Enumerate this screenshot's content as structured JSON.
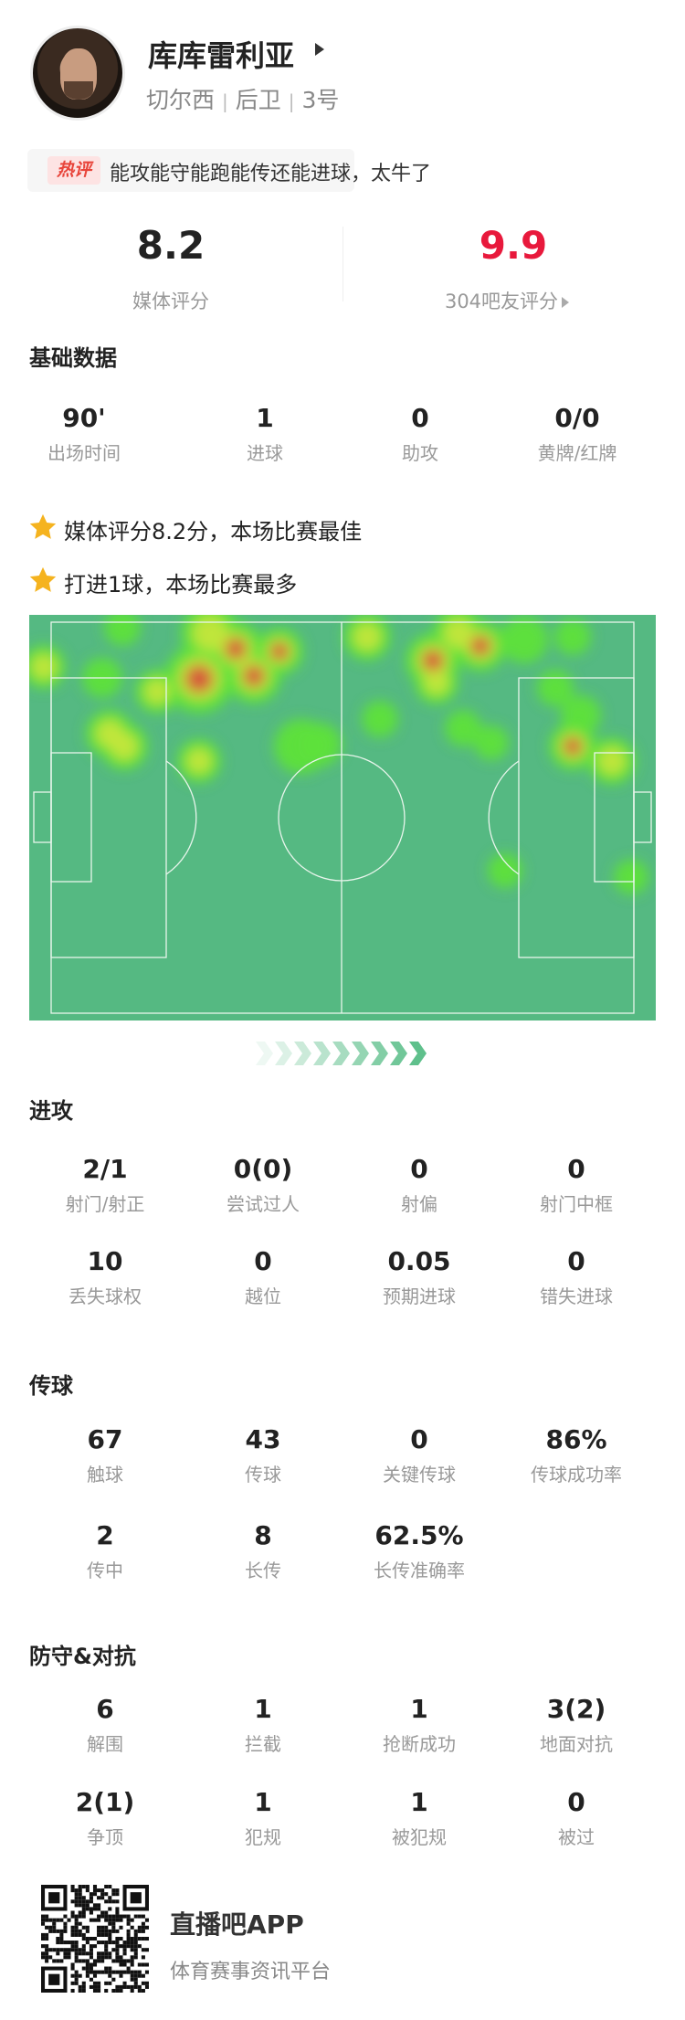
{
  "player": {
    "name": "库库雷利亚",
    "club": "切尔西",
    "position": "后卫",
    "number": "3号"
  },
  "comment": {
    "tag": "热评",
    "text": "能攻能守能跑能传还能进球，太牛了"
  },
  "ratings": {
    "media_score": "8.2",
    "media_label": "媒体评分",
    "fan_score": "9.9",
    "fan_label": "304吧友评分",
    "fan_color": "#e8193c"
  },
  "basic": {
    "title": "基础数据",
    "stats": [
      {
        "value": "90'",
        "label": "出场时间"
      },
      {
        "value": "1",
        "label": "进球"
      },
      {
        "value": "0",
        "label": "助攻"
      },
      {
        "value": "0/0",
        "label": "黄牌/红牌"
      }
    ]
  },
  "highlights": [
    {
      "icon": "star-icon",
      "text": "媒体评分8.2分，本场比赛最佳"
    },
    {
      "icon": "star-icon",
      "text": "打进1球，本场比赛最多"
    }
  ],
  "attack": {
    "title": "进攻",
    "stats": [
      {
        "value": "2/1",
        "label": "射门/射正"
      },
      {
        "value": "0(0)",
        "label": "尝试过人"
      },
      {
        "value": "0",
        "label": "射偏"
      },
      {
        "value": "0",
        "label": "射门中框"
      },
      {
        "value": "10",
        "label": "丢失球权"
      },
      {
        "value": "0",
        "label": "越位"
      },
      {
        "value": "0.05",
        "label": "预期进球"
      },
      {
        "value": "0",
        "label": "错失进球"
      }
    ]
  },
  "passing": {
    "title": "传球",
    "stats": [
      {
        "value": "67",
        "label": "触球"
      },
      {
        "value": "43",
        "label": "传球"
      },
      {
        "value": "0",
        "label": "关键传球"
      },
      {
        "value": "86%",
        "label": "传球成功率"
      },
      {
        "value": "2",
        "label": "传中"
      },
      {
        "value": "8",
        "label": "长传"
      },
      {
        "value": "62.5%",
        "label": "长传准确率"
      }
    ]
  },
  "defense": {
    "title": "防守&对抗",
    "stats": [
      {
        "value": "6",
        "label": "解围"
      },
      {
        "value": "1",
        "label": "拦截"
      },
      {
        "value": "1",
        "label": "抢断成功"
      },
      {
        "value": "3(2)",
        "label": "地面对抗"
      },
      {
        "value": "2(1)",
        "label": "争顶"
      },
      {
        "value": "1",
        "label": "犯规"
      },
      {
        "value": "1",
        "label": "被犯规"
      },
      {
        "value": "0",
        "label": "被过"
      }
    ]
  },
  "footer": {
    "app_name": "直播吧APP",
    "app_subtitle": "体育赛事资讯平台"
  },
  "colors": {
    "pitch": "#55b982",
    "accent_green": "#5cbf8a",
    "star": "#f5b31f"
  }
}
